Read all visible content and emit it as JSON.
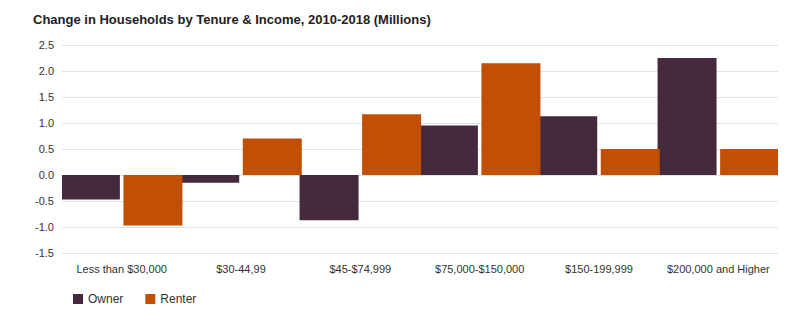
{
  "chart_data": {
    "type": "bar",
    "title": "Change in Households by Tenure & Income, 2010-2018 (Millions)",
    "categories": [
      "Less than $30,000",
      "$30-44,99",
      "$45-$74,999",
      "$75,000-$150,000",
      "$150-199,999",
      "$200,000 and Higher"
    ],
    "series": [
      {
        "name": "Owner",
        "color": "#45293d",
        "values": [
          -0.47,
          -0.15,
          -0.87,
          0.95,
          1.13,
          2.25
        ]
      },
      {
        "name": "Renter",
        "color": "#c24f06",
        "values": [
          -0.97,
          0.7,
          1.17,
          2.15,
          0.5,
          0.5
        ]
      }
    ],
    "ylim": [
      -1.5,
      2.5
    ],
    "yticks": [
      -1.5,
      {
        "value": -1.0,
        "label": "-1.0"
      },
      -0.5,
      {
        "value": 0,
        "label": "0.0"
      },
      0.5,
      {
        "value": 1.0,
        "label": "1.0"
      },
      1.5,
      {
        "value": 2.0,
        "label": "2.0"
      },
      2.5
    ],
    "grid": true,
    "legend": "bottom-left"
  }
}
